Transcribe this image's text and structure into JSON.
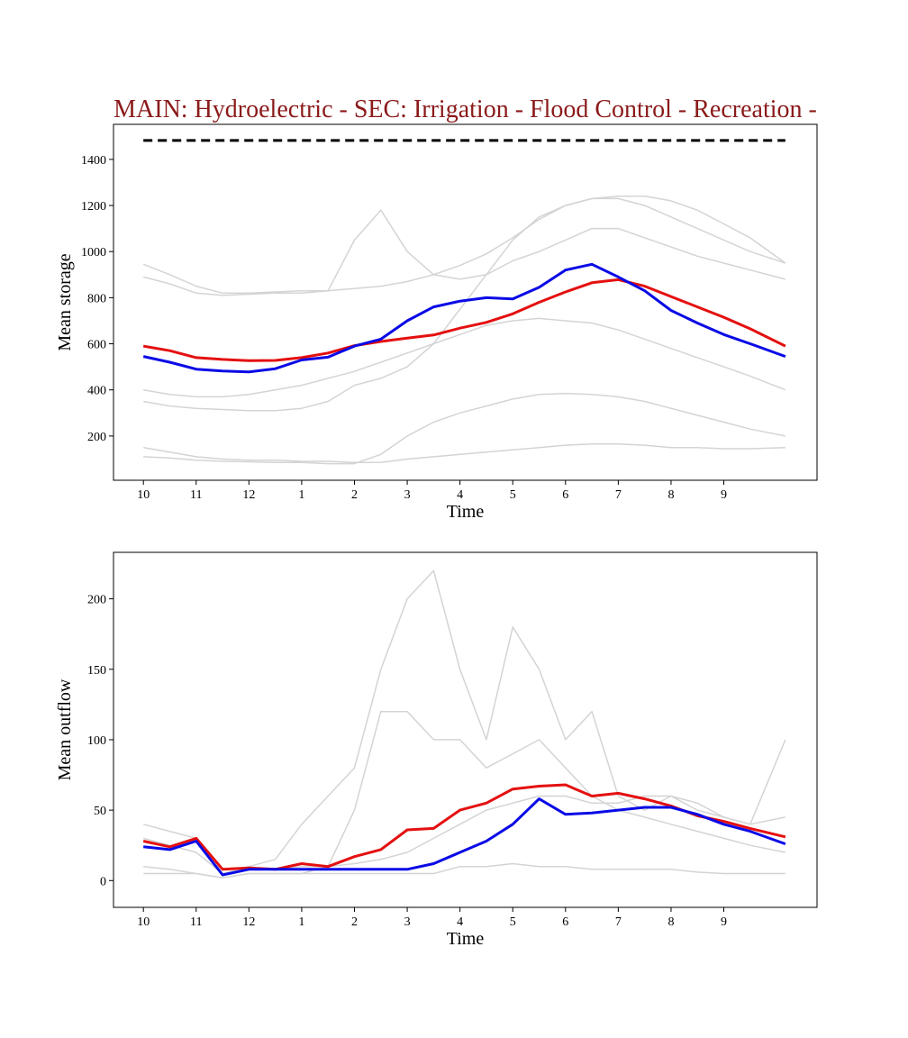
{
  "chart_data": [
    {
      "type": "line",
      "title": "MAIN: Hydroelectric - SEC: Irrigation - Flood Control - Recreation -",
      "title_color": "#8b1a1a",
      "xlabel": "Time",
      "ylabel": "Mean storage",
      "x": [
        0,
        15,
        30,
        45,
        60,
        75,
        90,
        105,
        120,
        135,
        150,
        165,
        180,
        195,
        210,
        225,
        240,
        255,
        270,
        285,
        300,
        315,
        330,
        345,
        365
      ],
      "xlim": [
        -17,
        383
      ],
      "xticks": [
        {
          "value": 0,
          "label": "10"
        },
        {
          "value": 30,
          "label": "11"
        },
        {
          "value": 60,
          "label": "12"
        },
        {
          "value": 90,
          "label": "1"
        },
        {
          "value": 120,
          "label": "2"
        },
        {
          "value": 150,
          "label": "3"
        },
        {
          "value": 180,
          "label": "4"
        },
        {
          "value": 210,
          "label": "5"
        },
        {
          "value": 240,
          "label": "6"
        },
        {
          "value": 270,
          "label": "7"
        },
        {
          "value": 300,
          "label": "8"
        },
        {
          "value": 330,
          "label": "9"
        }
      ],
      "ylim": [
        8,
        1552
      ],
      "yticks": [
        200,
        400,
        600,
        800,
        1000,
        1200,
        1400
      ],
      "hline": 1482,
      "hline_color": "#000000",
      "series": [
        {
          "color": "#d4d4d4",
          "linewidth": 1.5,
          "values": [
            945,
            900,
            850,
            820,
            820,
            825,
            830,
            830,
            840,
            850,
            870,
            900,
            940,
            990,
            1060,
            1140,
            1200,
            1230,
            1240,
            1240,
            1220,
            1180,
            1120,
            1060,
            950
          ]
        },
        {
          "color": "#d4d4d4",
          "linewidth": 1.5,
          "values": [
            890,
            860,
            820,
            810,
            815,
            820,
            820,
            830,
            1050,
            1180,
            1000,
            900,
            880,
            900,
            960,
            1000,
            1050,
            1100,
            1100,
            1060,
            1020,
            980,
            950,
            920,
            880
          ]
        },
        {
          "color": "#d4d4d4",
          "linewidth": 1.5,
          "values": [
            350,
            330,
            320,
            315,
            310,
            310,
            320,
            350,
            420,
            450,
            500,
            600,
            750,
            900,
            1050,
            1150,
            1200,
            1230,
            1230,
            1200,
            1150,
            1100,
            1050,
            1000,
            950
          ]
        },
        {
          "color": "#d4d4d4",
          "linewidth": 1.5,
          "values": [
            150,
            130,
            110,
            100,
            95,
            95,
            90,
            90,
            85,
            85,
            100,
            110,
            120,
            130,
            140,
            150,
            160,
            165,
            165,
            160,
            150,
            150,
            145,
            145,
            150
          ]
        },
        {
          "color": "#d4d4d4",
          "linewidth": 1.5,
          "values": [
            400,
            380,
            370,
            370,
            380,
            400,
            420,
            450,
            480,
            520,
            560,
            600,
            640,
            680,
            700,
            710,
            700,
            690,
            660,
            620,
            580,
            540,
            500,
            460,
            400
          ]
        },
        {
          "color": "#d4d4d4",
          "linewidth": 1.5,
          "values": [
            110,
            105,
            95,
            90,
            88,
            85,
            85,
            80,
            80,
            120,
            200,
            260,
            300,
            330,
            360,
            380,
            385,
            380,
            370,
            350,
            320,
            290,
            260,
            230,
            200
          ]
        },
        {
          "color": "#e41010",
          "linewidth": 3,
          "values": [
            590,
            570,
            540,
            532,
            527,
            528,
            540,
            560,
            592,
            610,
            625,
            638,
            668,
            693,
            730,
            780,
            825,
            865,
            878,
            850,
            805,
            760,
            715,
            665,
            590
          ]
        },
        {
          "color": "#0a0ae6",
          "linewidth": 3,
          "values": [
            545,
            520,
            490,
            482,
            478,
            492,
            530,
            542,
            590,
            620,
            700,
            760,
            785,
            800,
            795,
            845,
            920,
            945,
            890,
            830,
            745,
            690,
            640,
            600,
            545
          ]
        }
      ]
    },
    {
      "type": "line",
      "xlabel": "Time",
      "ylabel": "Mean outflow",
      "x": [
        0,
        15,
        30,
        45,
        60,
        75,
        90,
        105,
        120,
        135,
        150,
        165,
        180,
        195,
        210,
        225,
        240,
        255,
        270,
        285,
        300,
        315,
        330,
        345,
        365
      ],
      "xlim": [
        -17,
        383
      ],
      "xticks": [
        {
          "value": 0,
          "label": "10"
        },
        {
          "value": 30,
          "label": "11"
        },
        {
          "value": 60,
          "label": "12"
        },
        {
          "value": 90,
          "label": "1"
        },
        {
          "value": 120,
          "label": "2"
        },
        {
          "value": 150,
          "label": "3"
        },
        {
          "value": 180,
          "label": "4"
        },
        {
          "value": 210,
          "label": "5"
        },
        {
          "value": 240,
          "label": "6"
        },
        {
          "value": 270,
          "label": "7"
        },
        {
          "value": 300,
          "label": "8"
        },
        {
          "value": 330,
          "label": "9"
        }
      ],
      "ylim": [
        -19,
        233
      ],
      "yticks": [
        0,
        50,
        100,
        150,
        200
      ],
      "series": [
        {
          "color": "#d4d4d4",
          "linewidth": 1.5,
          "values": [
            30,
            25,
            20,
            5,
            10,
            15,
            40,
            60,
            80,
            150,
            200,
            220,
            150,
            100,
            180,
            150,
            100,
            120,
            60,
            50,
            60,
            50,
            45,
            40,
            100
          ]
        },
        {
          "color": "#d4d4d4",
          "linewidth": 1.5,
          "values": [
            10,
            8,
            5,
            2,
            5,
            5,
            5,
            10,
            50,
            120,
            120,
            100,
            100,
            80,
            90,
            100,
            80,
            60,
            50,
            45,
            40,
            35,
            30,
            25,
            20
          ]
        },
        {
          "color": "#d4d4d4",
          "linewidth": 1.5,
          "values": [
            40,
            35,
            30,
            5,
            8,
            8,
            10,
            10,
            12,
            15,
            20,
            30,
            40,
            50,
            55,
            60,
            60,
            55,
            55,
            60,
            60,
            55,
            45,
            40,
            45
          ]
        },
        {
          "color": "#d4d4d4",
          "linewidth": 1.5,
          "values": [
            5,
            5,
            5,
            2,
            5,
            5,
            5,
            5,
            5,
            5,
            5,
            5,
            10,
            10,
            12,
            10,
            10,
            8,
            8,
            8,
            8,
            6,
            5,
            5,
            5
          ]
        },
        {
          "color": "#e41010",
          "linewidth": 3,
          "values": [
            28,
            24,
            30,
            8,
            9,
            8,
            12,
            10,
            17,
            22,
            36,
            37,
            50,
            55,
            65,
            67,
            68,
            60,
            62,
            58,
            53,
            46,
            42,
            37,
            31
          ]
        },
        {
          "color": "#0a0ae6",
          "linewidth": 3,
          "values": [
            24,
            22,
            28,
            4,
            8,
            8,
            8,
            8,
            8,
            8,
            8,
            12,
            20,
            28,
            40,
            58,
            47,
            48,
            50,
            52,
            52,
            47,
            40,
            35,
            26
          ]
        }
      ]
    }
  ]
}
